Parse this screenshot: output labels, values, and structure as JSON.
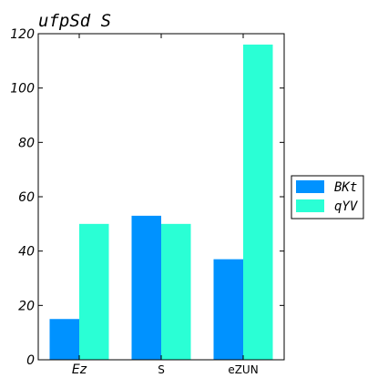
{
  "chart_data": {
    "type": "bar",
    "title": "ufpSd S",
    "xlabel": "",
    "ylabel": "",
    "categories": [
      "Ez",
      "S",
      "eZUN"
    ],
    "series": [
      {
        "name": "BKt",
        "values": [
          15,
          53,
          37
        ],
        "color": "#0092ff"
      },
      {
        "name": "qYV",
        "values": [
          50,
          50,
          116
        ],
        "color": "#2affd5"
      }
    ],
    "ylim": [
      0,
      120
    ],
    "yticks": [
      0,
      20,
      40,
      60,
      80,
      100,
      120
    ],
    "grid": false,
    "legend_position": "right-outside"
  }
}
